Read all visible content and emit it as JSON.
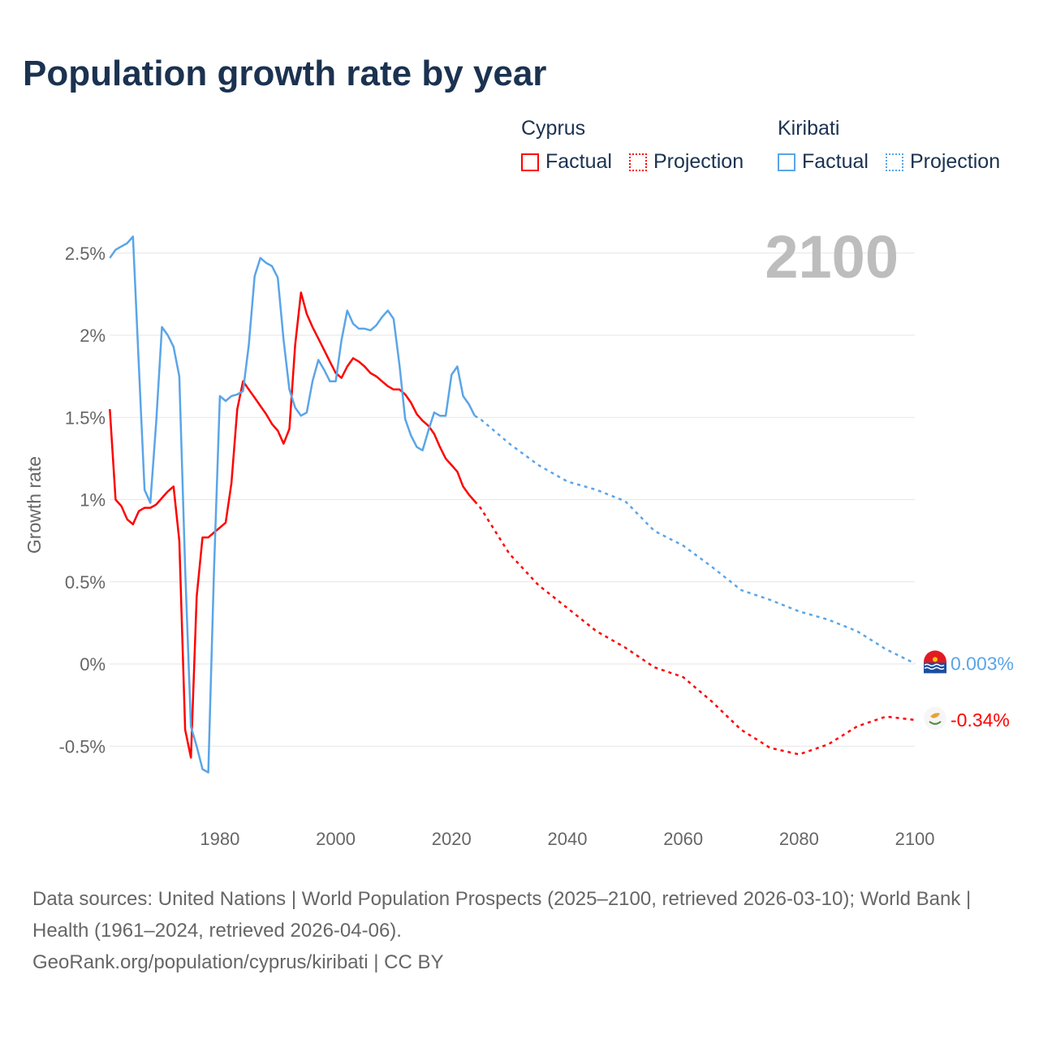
{
  "title": "Population growth rate by year",
  "legend": {
    "groups": [
      {
        "name": "Cyprus",
        "color": "#ff0000",
        "factual": "Factual",
        "projection": "Projection"
      },
      {
        "name": "Kiribati",
        "color": "#5aa5e8",
        "factual": "Factual",
        "projection": "Projection"
      }
    ]
  },
  "year_label": "2100",
  "footer": {
    "sources": "Data sources: United Nations | World Population Prospects (2025–2100, retrieved 2026-03-10); World Bank | Health (1961–2024, retrieved 2026-04-06).",
    "credit": "GeoRank.org/population/cyprus/kiribati | CC BY"
  },
  "chart_data": {
    "type": "line",
    "title": "Population growth rate by year",
    "xlabel": "",
    "ylabel": "Growth rate",
    "xlim": [
      1961,
      2100
    ],
    "ylim": [
      -0.9,
      2.75
    ],
    "grid": true,
    "xticks": [
      1980,
      2000,
      2020,
      2040,
      2060,
      2080,
      2100
    ],
    "xtick_labels": [
      "1980",
      "2000",
      "2020",
      "2040",
      "2060",
      "2080",
      "2100"
    ],
    "yticks": [
      -0.5,
      0,
      0.5,
      1,
      1.5,
      2,
      2.5
    ],
    "ytick_labels": [
      "-0.5%",
      "0%",
      "0.5%",
      "1%",
      "1.5%",
      "2%",
      "2.5%"
    ],
    "legend_position": "top-right",
    "series": [
      {
        "name": "Cyprus",
        "color": "#ff0000",
        "end_label": "-0.34%",
        "factual": {
          "x": [
            1961,
            1962,
            1963,
            1964,
            1965,
            1966,
            1967,
            1968,
            1969,
            1970,
            1971,
            1972,
            1973,
            1974,
            1975,
            1976,
            1977,
            1978,
            1979,
            1980,
            1981,
            1982,
            1983,
            1984,
            1985,
            1986,
            1987,
            1988,
            1989,
            1990,
            1991,
            1992,
            1993,
            1994,
            1995,
            1996,
            1997,
            1998,
            1999,
            2000,
            2001,
            2002,
            2003,
            2004,
            2005,
            2006,
            2007,
            2008,
            2009,
            2010,
            2011,
            2012,
            2013,
            2014,
            2015,
            2016,
            2017,
            2018,
            2019,
            2020,
            2021,
            2022,
            2023,
            2024
          ],
          "y": [
            1.55,
            1.0,
            0.96,
            0.88,
            0.85,
            0.93,
            0.95,
            0.95,
            0.97,
            1.01,
            1.05,
            1.08,
            0.75,
            -0.4,
            -0.57,
            0.41,
            0.77,
            0.77,
            0.8,
            0.83,
            0.86,
            1.1,
            1.55,
            1.72,
            1.67,
            1.62,
            1.57,
            1.52,
            1.46,
            1.42,
            1.34,
            1.43,
            1.94,
            2.26,
            2.13,
            2.05,
            1.98,
            1.91,
            1.84,
            1.77,
            1.74,
            1.81,
            1.86,
            1.84,
            1.81,
            1.77,
            1.75,
            1.72,
            1.69,
            1.67,
            1.67,
            1.64,
            1.59,
            1.52,
            1.48,
            1.45,
            1.4,
            1.32,
            1.25,
            1.21,
            1.17,
            1.08,
            1.03,
            0.99
          ]
        },
        "projection": {
          "x": [
            2024,
            2025,
            2030,
            2035,
            2040,
            2045,
            2050,
            2055,
            2060,
            2065,
            2070,
            2075,
            2080,
            2085,
            2090,
            2095,
            2100
          ],
          "y": [
            0.99,
            0.95,
            0.67,
            0.48,
            0.34,
            0.2,
            0.1,
            -0.02,
            -0.08,
            -0.23,
            -0.4,
            -0.51,
            -0.55,
            -0.49,
            -0.38,
            -0.32,
            -0.34
          ]
        }
      },
      {
        "name": "Kiribati",
        "color": "#5aa5e8",
        "end_label": "0.003%",
        "factual": {
          "x": [
            1961,
            1962,
            1963,
            1964,
            1965,
            1966,
            1967,
            1968,
            1969,
            1970,
            1971,
            1972,
            1973,
            1974,
            1975,
            1976,
            1977,
            1978,
            1979,
            1980,
            1981,
            1982,
            1983,
            1984,
            1985,
            1986,
            1987,
            1988,
            1989,
            1990,
            1991,
            1992,
            1993,
            1994,
            1995,
            1996,
            1997,
            1998,
            1999,
            2000,
            2001,
            2002,
            2003,
            2004,
            2005,
            2006,
            2007,
            2008,
            2009,
            2010,
            2011,
            2012,
            2013,
            2014,
            2015,
            2016,
            2017,
            2018,
            2019,
            2020,
            2021,
            2022,
            2023,
            2024
          ],
          "y": [
            2.47,
            2.52,
            2.54,
            2.56,
            2.6,
            1.82,
            1.06,
            0.98,
            1.47,
            2.05,
            2.0,
            1.93,
            1.75,
            0.58,
            -0.38,
            -0.5,
            -0.64,
            -0.66,
            0.58,
            1.63,
            1.6,
            1.63,
            1.64,
            1.66,
            1.94,
            2.36,
            2.47,
            2.44,
            2.42,
            2.35,
            1.97,
            1.67,
            1.56,
            1.51,
            1.53,
            1.72,
            1.85,
            1.79,
            1.72,
            1.72,
            1.97,
            2.15,
            2.07,
            2.04,
            2.04,
            2.03,
            2.06,
            2.11,
            2.15,
            2.1,
            1.82,
            1.49,
            1.39,
            1.32,
            1.3,
            1.42,
            1.53,
            1.51,
            1.51,
            1.76,
            1.81,
            1.63,
            1.58,
            1.51
          ]
        },
        "projection": {
          "x": [
            2024,
            2025,
            2030,
            2035,
            2040,
            2045,
            2050,
            2055,
            2060,
            2065,
            2070,
            2075,
            2080,
            2085,
            2090,
            2095,
            2100
          ],
          "y": [
            1.51,
            1.49,
            1.34,
            1.21,
            1.11,
            1.06,
            0.99,
            0.81,
            0.72,
            0.59,
            0.45,
            0.39,
            0.32,
            0.27,
            0.2,
            0.09,
            0.003
          ]
        }
      }
    ]
  }
}
